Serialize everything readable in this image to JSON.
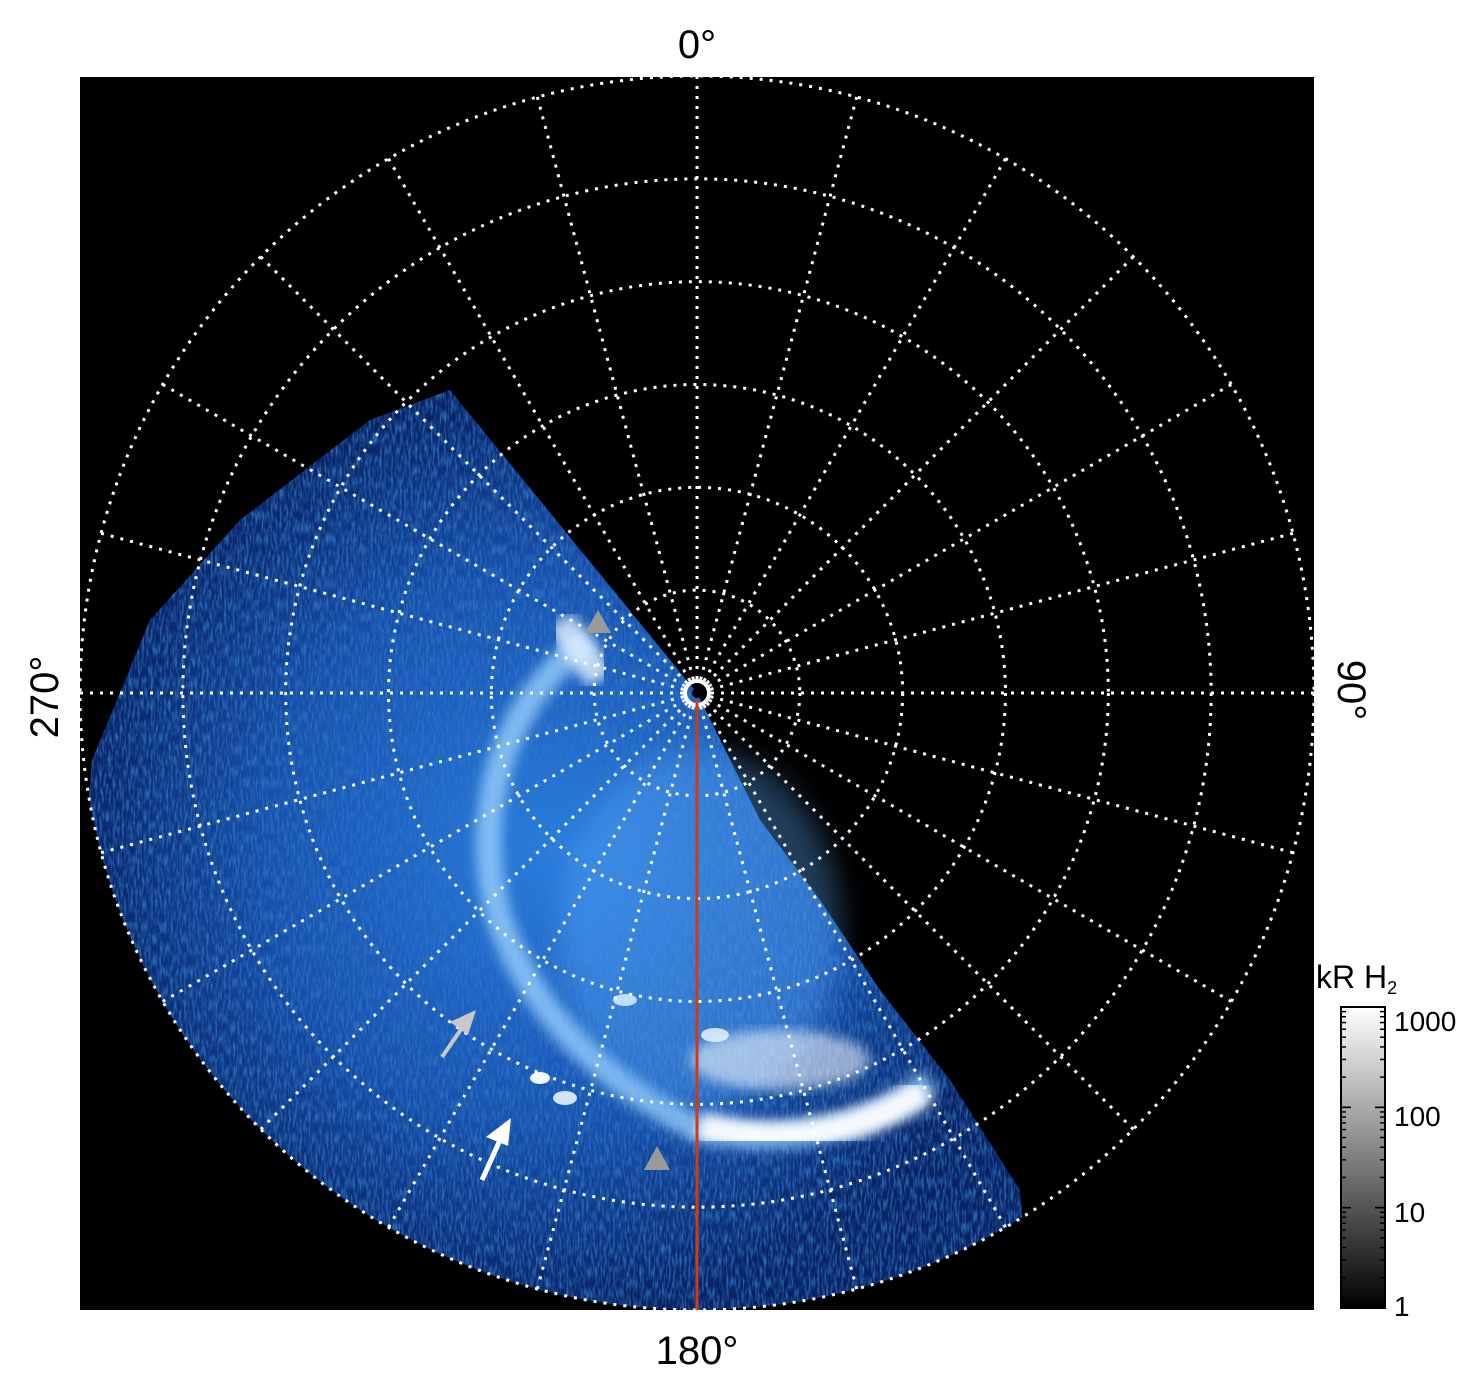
{
  "image": {
    "description_label": "",
    "colors": {
      "background": "#000000",
      "emission_dark": "#0a2a7a",
      "emission_mid": "#1f6fe0",
      "emission_bright": "#ffffff",
      "grid": "#ffffff",
      "meridian_line": "#d03a14",
      "marker_gray": "#9a9a9a",
      "arrow_white": "#ffffff"
    }
  },
  "polar_grid": {
    "longitude_labels": {
      "top": "0°",
      "right": "90°",
      "bottom": "180°",
      "left": "270°"
    },
    "meridian_spacing_deg": 15,
    "latitude_circles": 6
  },
  "colorbar": {
    "title": "kR H",
    "title_subscript": "2",
    "tick_labels": [
      "1000",
      "100",
      "10",
      "1"
    ],
    "scale": "log",
    "range": [
      1,
      1000
    ],
    "colors": [
      "#000000",
      "#ffffff"
    ]
  },
  "annotations": {
    "arrows": [
      {
        "color_name": "gray",
        "icon": "arrow-icon"
      },
      {
        "color_name": "white",
        "icon": "arrow-icon"
      }
    ],
    "triangles": [
      {
        "color_name": "gray",
        "icon": "triangle-icon"
      },
      {
        "color_name": "gray",
        "icon": "triangle-icon"
      }
    ]
  }
}
